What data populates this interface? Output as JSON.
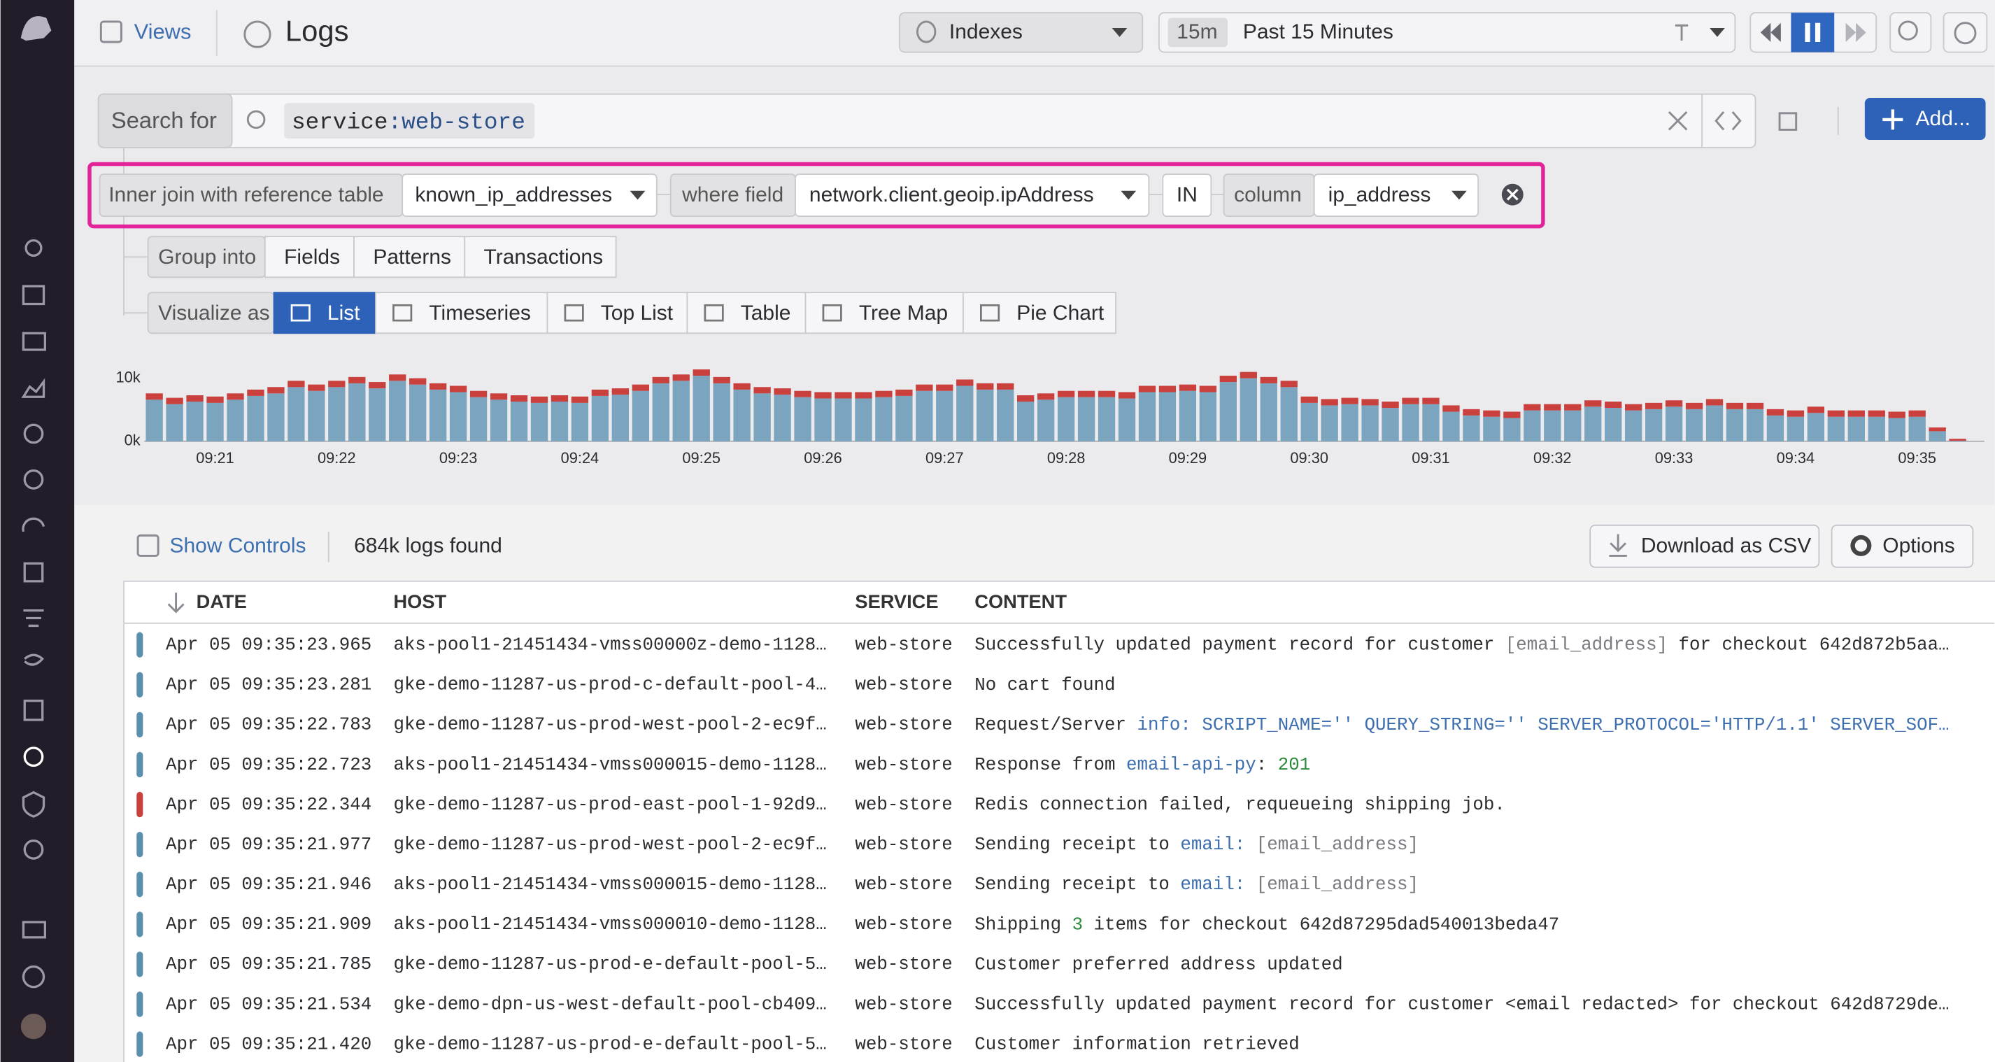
{
  "app": {
    "views": "Views",
    "title": "Logs"
  },
  "toolbar": {
    "indexes": "Indexes",
    "time_badge": "15m",
    "time_range": "Past 15 Minutes",
    "add_button": "Add..."
  },
  "search": {
    "label": "Search for",
    "query_key": "service",
    "query_value": ":web-store"
  },
  "join": {
    "label": "Inner join with reference table",
    "table": "known_ip_addresses",
    "where_label": "where field",
    "field": "network.client.geoip.ipAddress",
    "operator": "IN",
    "column_label": "column",
    "column": "ip_address"
  },
  "group": {
    "label": "Group into",
    "options": [
      "Fields",
      "Patterns",
      "Transactions"
    ]
  },
  "visualize": {
    "label": "Visualize as",
    "options": [
      "List",
      "Timeseries",
      "Top List",
      "Table",
      "Tree Map",
      "Pie Chart"
    ],
    "selected": "List"
  },
  "chart_data": {
    "type": "bar",
    "stacked": true,
    "categories": [
      null,
      null,
      null,
      "09:21",
      null,
      null,
      null,
      null,
      null,
      "09:22",
      null,
      null,
      null,
      null,
      null,
      "09:23",
      null,
      null,
      null,
      null,
      null,
      "09:24",
      null,
      null,
      null,
      null,
      null,
      "09:25",
      null,
      null,
      null,
      null,
      null,
      "09:26",
      null,
      null,
      null,
      null,
      null,
      "09:27",
      null,
      null,
      null,
      null,
      null,
      "09:28",
      null,
      null,
      null,
      null,
      null,
      "09:29",
      null,
      null,
      null,
      null,
      null,
      "09:30",
      null,
      null,
      null,
      null,
      null,
      "09:31",
      null,
      null,
      null,
      null,
      null,
      "09:32",
      null,
      null,
      null,
      null,
      null,
      "09:33",
      null,
      null,
      null,
      null,
      null,
      "09:34",
      null,
      null,
      null,
      null,
      null,
      "09:35",
      null,
      null
    ],
    "series": [
      {
        "color": "#7ba4be",
        "values": [
          6600,
          5900,
          6300,
          6100,
          6600,
          7200,
          7600,
          8600,
          8000,
          8600,
          9200,
          8400,
          9600,
          9000,
          8200,
          7800,
          7000,
          6600,
          6300,
          6100,
          6300,
          6100,
          7200,
          7400,
          8000,
          9200,
          9600,
          10400,
          9200,
          8200,
          7600,
          7400,
          7000,
          6800,
          6800,
          6800,
          7000,
          7200,
          8000,
          8000,
          8800,
          8200,
          8200,
          6300,
          6600,
          7000,
          7000,
          7000,
          6800,
          7800,
          7800,
          8000,
          7800,
          9400,
          10000,
          9200,
          8600,
          6100,
          5700,
          5900,
          5700,
          5300,
          5900,
          5900,
          4700,
          4100,
          3900,
          3700,
          4900,
          4900,
          4900,
          5500,
          5300,
          4900,
          5100,
          5500,
          5100,
          5700,
          5100,
          5100,
          4100,
          3900,
          4500,
          3900,
          3900,
          3900,
          3700,
          3900,
          1600,
          100
        ]
      },
      {
        "color": "#c9403d",
        "values": [
          1000,
          1000,
          1000,
          1000,
          1000,
          1000,
          1000,
          1000,
          1000,
          1000,
          1000,
          1000,
          1000,
          1000,
          1000,
          1000,
          1000,
          1000,
          1000,
          1000,
          1000,
          1000,
          1000,
          1000,
          1000,
          1000,
          1000,
          1000,
          1000,
          1000,
          1000,
          1000,
          1000,
          1000,
          1000,
          1000,
          1000,
          1000,
          1000,
          1000,
          1000,
          1000,
          1000,
          1000,
          1000,
          1000,
          1000,
          1000,
          1000,
          1000,
          1000,
          1000,
          1000,
          1000,
          1000,
          1000,
          1000,
          1000,
          1000,
          1000,
          1000,
          1000,
          1000,
          1000,
          1000,
          1000,
          1000,
          1000,
          1000,
          1000,
          1000,
          1000,
          1000,
          1000,
          1000,
          1000,
          1000,
          1000,
          1000,
          1000,
          1000,
          1000,
          1000,
          1000,
          1000,
          1000,
          1000,
          1000,
          600,
          300
        ]
      }
    ],
    "ylim": [
      0,
      12500
    ],
    "yticks": [
      {
        "value": 0,
        "label": "0k"
      },
      {
        "value": 10000,
        "label": "10k"
      }
    ]
  },
  "results": {
    "show_controls": "Show Controls",
    "count": "684k logs found",
    "download": "Download as CSV",
    "options": "Options"
  },
  "table": {
    "columns": [
      "DATE",
      "HOST",
      "SERVICE",
      "CONTENT"
    ],
    "rows": [
      {
        "status_color": "#5b8fae",
        "date": "Apr 05 09:35:23.965",
        "host": "aks-pool1-21451434-vmss00000z-demo-1128…",
        "service": "web-store",
        "content": [
          {
            "text": "Successfully updated payment record for customer ",
            "color": "#2c2c30"
          },
          {
            "text": "[email_address]",
            "color": "#7a7a80"
          },
          {
            "text": " for checkout 642d872b5aa…",
            "color": "#2c2c30"
          }
        ]
      },
      {
        "status_color": "#5b8fae",
        "date": "Apr 05 09:35:23.281",
        "host": "gke-demo-11287-us-prod-c-default-pool-4…",
        "service": "web-store",
        "content": [
          {
            "text": "No cart found",
            "color": "#2c2c30"
          }
        ]
      },
      {
        "status_color": "#5b8fae",
        "date": "Apr 05 09:35:22.783",
        "host": "gke-demo-11287-us-prod-west-pool-2-ec9f…",
        "service": "web-store",
        "content": [
          {
            "text": "Request/Server ",
            "color": "#2c2c30"
          },
          {
            "text": "info: SCRIPT_NAME='' QUERY_STRING='' SERVER_PROTOCOL='HTTP/1.1' SERVER_SOF…",
            "color": "#3d6fb0"
          }
        ]
      },
      {
        "status_color": "#5b8fae",
        "date": "Apr 05 09:35:22.723",
        "host": "aks-pool1-21451434-vmss000015-demo-1128…",
        "service": "web-store",
        "content": [
          {
            "text": "Response from ",
            "color": "#2c2c30"
          },
          {
            "text": "email-api-py",
            "color": "#3d6fb0"
          },
          {
            "text": ": ",
            "color": "#2c2c30"
          },
          {
            "text": "201",
            "color": "#2f8a3c"
          }
        ]
      },
      {
        "status_color": "#c9403d",
        "date": "Apr 05 09:35:22.344",
        "host": "gke-demo-11287-us-prod-east-pool-1-92d9…",
        "service": "web-store",
        "content": [
          {
            "text": "Redis connection failed, requeueing shipping job.",
            "color": "#2c2c30"
          }
        ]
      },
      {
        "status_color": "#5b8fae",
        "date": "Apr 05 09:35:21.977",
        "host": "gke-demo-11287-us-prod-west-pool-2-ec9f…",
        "service": "web-store",
        "content": [
          {
            "text": "Sending receipt to ",
            "color": "#2c2c30"
          },
          {
            "text": "email:",
            "color": "#3d6fb0"
          },
          {
            "text": " [email_address]",
            "color": "#7a7a80"
          }
        ]
      },
      {
        "status_color": "#5b8fae",
        "date": "Apr 05 09:35:21.946",
        "host": "aks-pool1-21451434-vmss000015-demo-1128…",
        "service": "web-store",
        "content": [
          {
            "text": "Sending receipt to ",
            "color": "#2c2c30"
          },
          {
            "text": "email:",
            "color": "#3d6fb0"
          },
          {
            "text": " [email_address]",
            "color": "#7a7a80"
          }
        ]
      },
      {
        "status_color": "#5b8fae",
        "date": "Apr 05 09:35:21.909",
        "host": "aks-pool1-21451434-vmss000010-demo-1128…",
        "service": "web-store",
        "content": [
          {
            "text": "Shipping ",
            "color": "#2c2c30"
          },
          {
            "text": "3",
            "color": "#2f8a3c"
          },
          {
            "text": " items for checkout 642d87295dad540013beda47",
            "color": "#2c2c30"
          }
        ]
      },
      {
        "status_color": "#5b8fae",
        "date": "Apr 05 09:35:21.785",
        "host": "gke-demo-11287-us-prod-e-default-pool-5…",
        "service": "web-store",
        "content": [
          {
            "text": "Customer preferred address updated",
            "color": "#2c2c30"
          }
        ]
      },
      {
        "status_color": "#5b8fae",
        "date": "Apr 05 09:35:21.534",
        "host": "gke-demo-dpn-us-west-default-pool-cb409…",
        "service": "web-store",
        "content": [
          {
            "text": "Successfully updated payment record for customer <email redacted> for checkout 642d8729de…",
            "color": "#2c2c30"
          }
        ]
      },
      {
        "status_color": "#5b8fae",
        "date": "Apr 05 09:35:21.420",
        "host": "gke-demo-11287-us-prod-e-default-pool-5…",
        "service": "web-store",
        "content": [
          {
            "text": "Customer information retrieved",
            "color": "#2c2c30"
          }
        ]
      }
    ]
  }
}
